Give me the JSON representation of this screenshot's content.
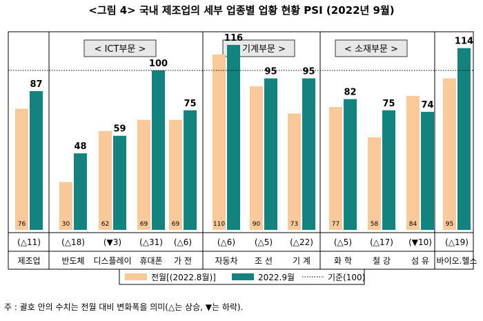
{
  "title": "<그림 4> 국내 제조업의 세부 업종별 업황 현황 PSI (2022년 9월)",
  "footnote": "주 : 괄호 안의 수치는 전월 대비 변화폭을 의미(△는 상승, ▼는 하락).",
  "colors": {
    "prev": "#FAC99A",
    "curr": "#13837F",
    "prev_label_bg": "#FCE3C6",
    "group_box_bg": "#E8E8E8",
    "frame": "#000000",
    "grid": "#B0B0B0"
  },
  "chart_data": {
    "type": "bar",
    "groups": [
      "< ICT부문 >",
      "< 기계부문 >",
      "< 소재부문 >"
    ],
    "categories": [
      "제조업",
      "반도체",
      "디스플레이",
      "휴대폰",
      "가 전",
      "자동차",
      "조 선",
      "기 계",
      "화 학",
      "철 강",
      "섬 유",
      "바이오.헬스"
    ],
    "category_group": [
      null,
      0,
      0,
      0,
      0,
      1,
      1,
      1,
      2,
      2,
      2,
      null
    ],
    "series": [
      {
        "name": "전월[(2022.8월)]",
        "values": [
          76,
          30,
          62,
          69,
          69,
          110,
          90,
          73,
          77,
          58,
          84,
          95
        ]
      },
      {
        "name": "2022.9월",
        "values": [
          87,
          48,
          59,
          100,
          75,
          116,
          95,
          95,
          82,
          75,
          74,
          114
        ]
      }
    ],
    "changes": [
      "(△11)",
      "(△18)",
      "(▼3)",
      "(△31)",
      "(△6)",
      "(△6)",
      "(△5)",
      "(△22)",
      "(△5)",
      "(△17)",
      "(▼10)",
      "(△19)"
    ],
    "reference": {
      "name": "기준(100)",
      "value": 100
    },
    "ylim": [
      0,
      125
    ],
    "legend_position": "bottom-center"
  }
}
